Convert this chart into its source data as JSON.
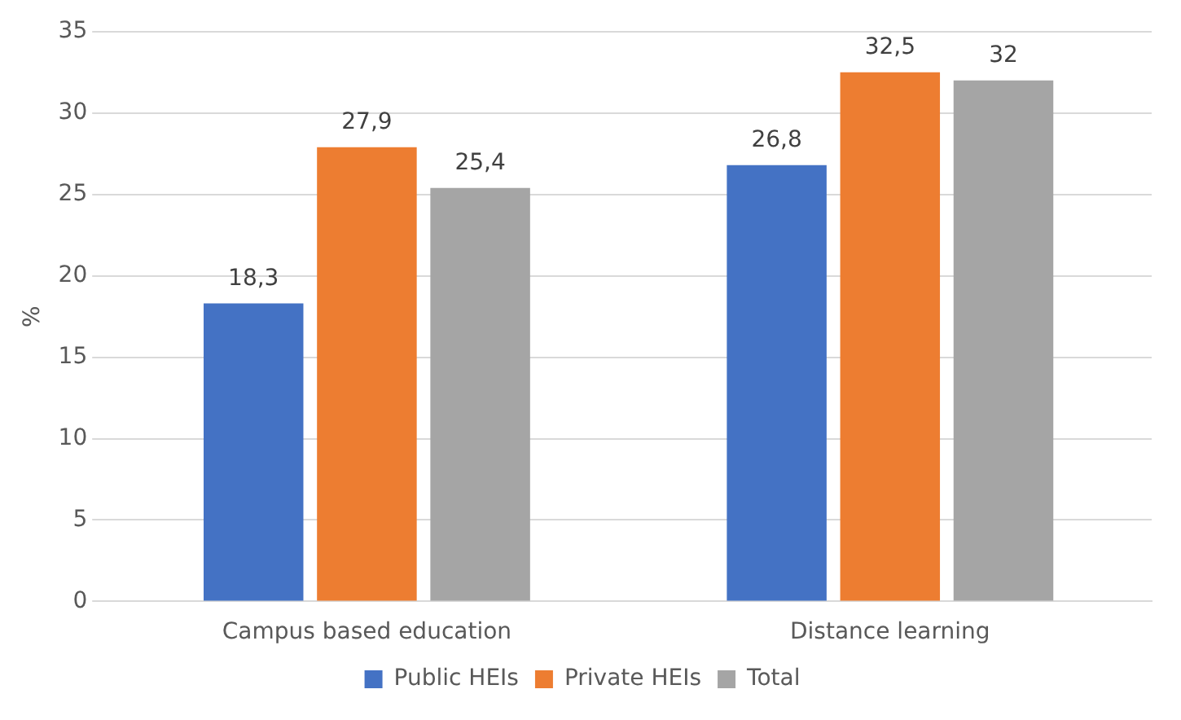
{
  "chart_data": {
    "type": "bar",
    "ylabel": "%",
    "categories": [
      "Campus based education",
      "Distance learning"
    ],
    "series": [
      {
        "name": "Public HEIs",
        "color": "#4472c4",
        "values": [
          18.3,
          26.8
        ],
        "value_labels": [
          "18,3",
          "26,8"
        ]
      },
      {
        "name": "Private HEIs",
        "color": "#ed7d31",
        "values": [
          27.9,
          32.5
        ],
        "value_labels": [
          "27,9",
          "32,5"
        ]
      },
      {
        "name": "Total",
        "color": "#a5a5a5",
        "values": [
          25.4,
          32
        ],
        "value_labels": [
          "25,4",
          "32"
        ]
      }
    ],
    "ylim": [
      0,
      35
    ],
    "yticks": [
      0,
      5,
      10,
      15,
      20,
      25,
      30,
      35
    ],
    "grid": "y",
    "legend": "bottom"
  }
}
